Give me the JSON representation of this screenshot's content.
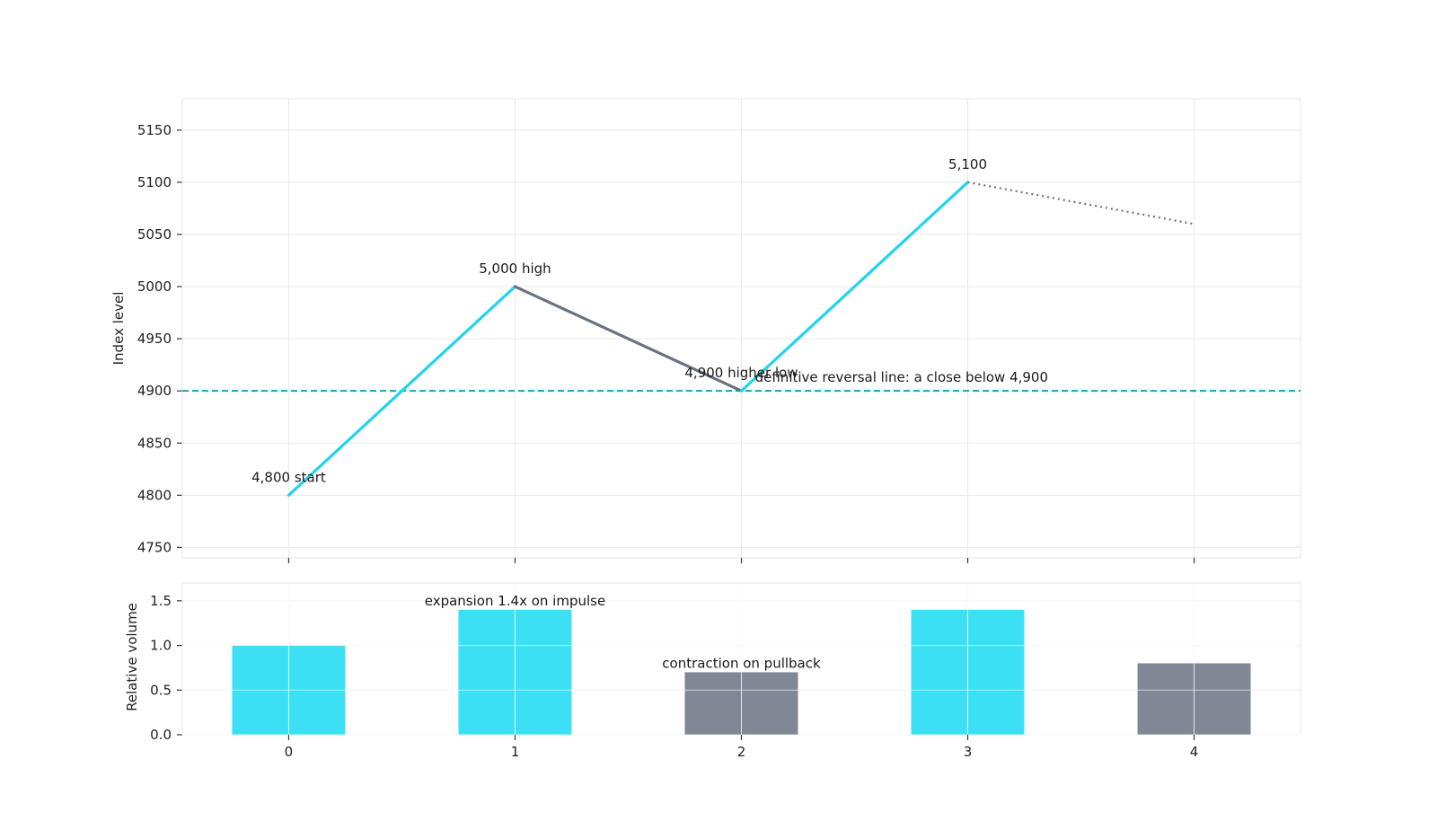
{
  "chart_data": [
    {
      "type": "line",
      "title": "",
      "xlabel": "",
      "ylabel": "Index level",
      "x": [
        0,
        1,
        2,
        3,
        4
      ],
      "xlim": [
        -0.47,
        4.47
      ],
      "ylim": [
        4740,
        5180
      ],
      "yticks": [
        4750,
        4800,
        4850,
        4900,
        4950,
        5000,
        5050,
        5100,
        5150
      ],
      "grid": true,
      "segments": [
        {
          "kind": "impulse",
          "x": [
            0,
            1
          ],
          "y": [
            4800,
            5000
          ],
          "color": "#22d3ee",
          "style": "solid"
        },
        {
          "kind": "pullback",
          "x": [
            1,
            2
          ],
          "y": [
            5000,
            4900
          ],
          "color": "#6b7280",
          "style": "solid"
        },
        {
          "kind": "impulse",
          "x": [
            2,
            3
          ],
          "y": [
            4900,
            5100
          ],
          "color": "#22d3ee",
          "style": "solid"
        },
        {
          "kind": "projection",
          "x": [
            3,
            4
          ],
          "y": [
            5100,
            5060
          ],
          "color": "#6b7280",
          "style": "dotted"
        }
      ],
      "hline": {
        "y": 4900,
        "color": "#06a9c9",
        "style": "dashed",
        "label": "definitive reversal line: a close below 4,900"
      },
      "annotations": [
        {
          "text": "4,800 start",
          "x": 0,
          "y": 4800
        },
        {
          "text": "5,000 high",
          "x": 1,
          "y": 5000
        },
        {
          "text": "4,900 higher low",
          "x": 2,
          "y": 4900
        },
        {
          "text": "5,100",
          "x": 3,
          "y": 5100
        }
      ]
    },
    {
      "type": "bar",
      "title": "",
      "xlabel": "",
      "ylabel": "Relative volume",
      "categories": [
        "0",
        "1",
        "2",
        "3",
        "4"
      ],
      "values": [
        1.0,
        1.4,
        0.7,
        1.4,
        0.8
      ],
      "colors": [
        "#3ce0f5",
        "#3ce0f5",
        "#808895",
        "#3ce0f5",
        "#808895"
      ],
      "ylim": [
        0,
        1.7
      ],
      "yticks": [
        "0.0",
        "0.5",
        "1.0",
        "1.5"
      ],
      "grid": true,
      "annotations": [
        {
          "text": "expansion 1.4x on impulse",
          "x": 1,
          "y": 1.4
        },
        {
          "text": "contraction on pullback",
          "x": 2,
          "y": 0.7
        }
      ]
    }
  ]
}
